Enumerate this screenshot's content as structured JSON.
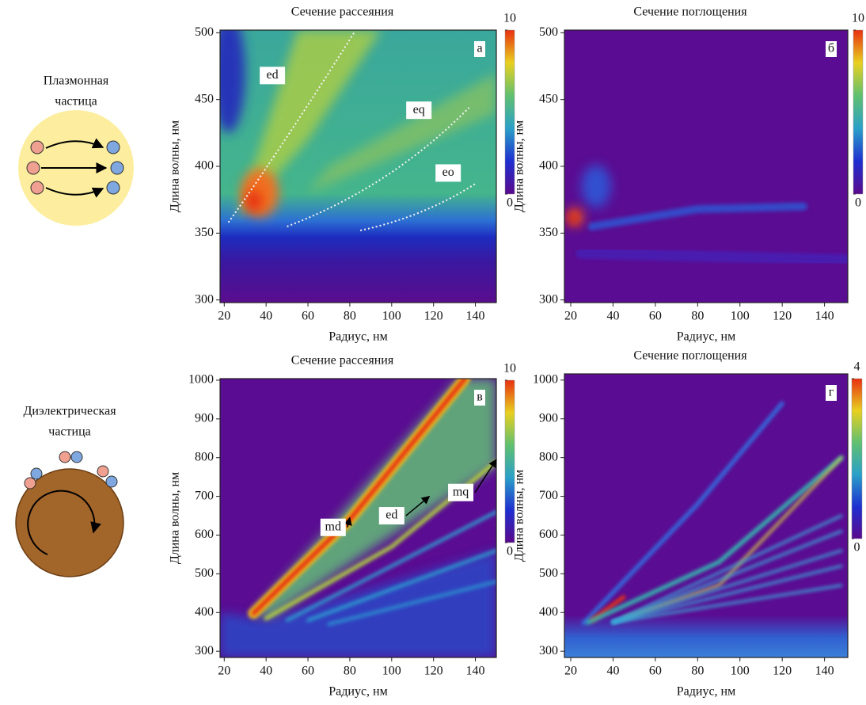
{
  "particles": [
    {
      "label_lines": [
        "Плазмонная",
        "частица"
      ]
    },
    {
      "label_lines": [
        "Диэлектрическая",
        "частица"
      ]
    }
  ],
  "chart_data": [
    {
      "type": "heatmap",
      "title": "Сечение рассеяния",
      "xlabel": "Радиус, нм",
      "ylabel": "Длина волны, нм",
      "xlim": [
        18,
        150
      ],
      "xticks": [
        20,
        40,
        60,
        80,
        100,
        120,
        140
      ],
      "ylim": [
        298,
        502
      ],
      "yticks": [
        300,
        350,
        400,
        450,
        500
      ],
      "panel_label": "а",
      "annotations": [
        "ed",
        "eq",
        "eo"
      ],
      "colorbar_lim": [
        0,
        10
      ],
      "colorbar_ticks": [
        0,
        10
      ],
      "colormap": [
        "#5a0a8c",
        "#1f2fd0",
        "#2aa0c8",
        "#60c070",
        "#e8d020",
        "#e83010"
      ]
    },
    {
      "type": "heatmap",
      "title": "Сечение поглощения",
      "xlabel": "Радиус, нм",
      "ylabel": "Длина волны, нм",
      "xlim": [
        17,
        151
      ],
      "xticks": [
        20,
        40,
        60,
        80,
        100,
        120,
        140
      ],
      "ylim": [
        298,
        502
      ],
      "yticks": [
        300,
        350,
        400,
        450,
        500
      ],
      "panel_label": "б",
      "annotations": [],
      "colorbar_lim": [
        0,
        10
      ],
      "colorbar_ticks": [
        0,
        10
      ],
      "colormap": [
        "#5a0a8c",
        "#1f2fd0",
        "#2aa0c8",
        "#60c070",
        "#e8d020",
        "#e83010"
      ]
    },
    {
      "type": "heatmap",
      "title": "Сечение рассеяния",
      "xlabel": "Радиус, нм",
      "ylabel": "Длина волны, нм",
      "xlim": [
        18,
        150
      ],
      "xticks": [
        20,
        40,
        60,
        80,
        100,
        120,
        140
      ],
      "ylim": [
        284,
        1004
      ],
      "yticks": [
        300,
        400,
        500,
        600,
        700,
        800,
        900,
        1000
      ],
      "panel_label": "в",
      "annotations": [
        "md",
        "ed",
        "mq"
      ],
      "colorbar_lim": [
        0,
        10
      ],
      "colorbar_ticks": [
        0,
        10
      ],
      "colormap": [
        "#5a0a8c",
        "#1f2fd0",
        "#2aa0c8",
        "#60c070",
        "#e8d020",
        "#e83010"
      ]
    },
    {
      "type": "heatmap",
      "title": "Сечение поглощения",
      "xlabel": "Радиус, нм",
      "ylabel": "Длина волны, нм",
      "xlim": [
        17,
        151
      ],
      "xticks": [
        20,
        40,
        60,
        80,
        100,
        120,
        140
      ],
      "ylim": [
        284,
        1016
      ],
      "yticks": [
        300,
        400,
        500,
        600,
        700,
        800,
        900,
        1000
      ],
      "panel_label": "г",
      "annotations": [],
      "colorbar_lim": [
        0,
        4
      ],
      "colorbar_ticks": [
        0,
        4
      ],
      "colormap": [
        "#5a0a8c",
        "#1f2fd0",
        "#2aa0c8",
        "#60c070",
        "#e8d020",
        "#e83010"
      ]
    }
  ]
}
